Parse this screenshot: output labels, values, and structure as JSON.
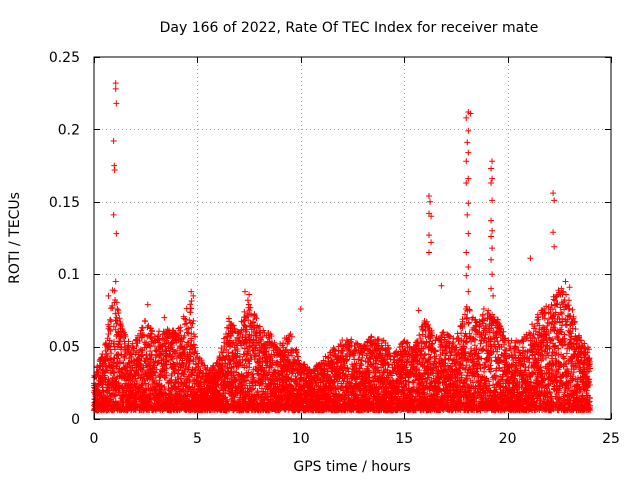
{
  "chart_data": {
    "type": "scatter",
    "title": "Day 166 of 2022, Rate Of TEC Index for receiver mate",
    "xlabel": "GPS time / hours",
    "ylabel": "ROTI / TECUs",
    "xlim": [
      0,
      25
    ],
    "ylim": [
      0,
      0.25
    ],
    "xticks": [
      0,
      5,
      10,
      15,
      20,
      25
    ],
    "yticks": [
      0,
      0.05,
      0.1,
      0.15,
      0.2,
      0.25
    ],
    "xtick_labels": [
      "0",
      "5",
      "10",
      "15",
      "20",
      "25"
    ],
    "ytick_labels": [
      "0",
      "0.05",
      "0.1",
      "0.15",
      "0.2",
      "0.25"
    ],
    "grid": true,
    "marker": "+",
    "color": "#ff0000",
    "series": [
      {
        "name": "ROTI",
        "envelope": [
          [
            0.0,
            0.03
          ],
          [
            0.5,
            0.05
          ],
          [
            0.8,
            0.075
          ],
          [
            1.0,
            0.09
          ],
          [
            1.3,
            0.065
          ],
          [
            1.8,
            0.05
          ],
          [
            2.5,
            0.07
          ],
          [
            3.0,
            0.06
          ],
          [
            3.5,
            0.065
          ],
          [
            4.0,
            0.06
          ],
          [
            4.7,
            0.085
          ],
          [
            5.0,
            0.045
          ],
          [
            5.5,
            0.035
          ],
          [
            6.0,
            0.04
          ],
          [
            6.5,
            0.07
          ],
          [
            7.0,
            0.06
          ],
          [
            7.4,
            0.085
          ],
          [
            8.0,
            0.065
          ],
          [
            8.5,
            0.06
          ],
          [
            9.0,
            0.055
          ],
          [
            9.5,
            0.06
          ],
          [
            10.0,
            0.04
          ],
          [
            10.5,
            0.035
          ],
          [
            11.0,
            0.04
          ],
          [
            11.5,
            0.05
          ],
          [
            12.0,
            0.055
          ],
          [
            12.5,
            0.055
          ],
          [
            13.0,
            0.05
          ],
          [
            13.5,
            0.06
          ],
          [
            14.0,
            0.055
          ],
          [
            14.5,
            0.045
          ],
          [
            15.0,
            0.055
          ],
          [
            15.5,
            0.05
          ],
          [
            16.0,
            0.07
          ],
          [
            16.5,
            0.06
          ],
          [
            17.0,
            0.06
          ],
          [
            17.5,
            0.055
          ],
          [
            18.0,
            0.08
          ],
          [
            18.5,
            0.07
          ],
          [
            19.0,
            0.08
          ],
          [
            19.5,
            0.07
          ],
          [
            20.0,
            0.055
          ],
          [
            20.5,
            0.055
          ],
          [
            21.0,
            0.06
          ],
          [
            21.5,
            0.075
          ],
          [
            22.0,
            0.08
          ],
          [
            22.5,
            0.09
          ],
          [
            23.0,
            0.085
          ],
          [
            23.5,
            0.055
          ],
          [
            24.0,
            0.05
          ]
        ],
        "spikes": [
          [
            1.05,
            0.232
          ],
          [
            1.05,
            0.228
          ],
          [
            1.08,
            0.218
          ],
          [
            0.95,
            0.192
          ],
          [
            0.98,
            0.175
          ],
          [
            1.0,
            0.172
          ],
          [
            0.95,
            0.141
          ],
          [
            1.08,
            0.128
          ],
          [
            1.05,
            0.095
          ],
          [
            0.9,
            0.089
          ],
          [
            0.7,
            0.085
          ],
          [
            2.6,
            0.079
          ],
          [
            3.4,
            0.07
          ],
          [
            4.7,
            0.088
          ],
          [
            4.8,
            0.085
          ],
          [
            7.3,
            0.088
          ],
          [
            7.5,
            0.086
          ],
          [
            10.0,
            0.076
          ],
          [
            16.2,
            0.154
          ],
          [
            16.25,
            0.15
          ],
          [
            16.2,
            0.142
          ],
          [
            16.3,
            0.14
          ],
          [
            16.2,
            0.127
          ],
          [
            16.3,
            0.122
          ],
          [
            16.2,
            0.115
          ],
          [
            16.8,
            0.092
          ],
          [
            15.7,
            0.075
          ],
          [
            18.1,
            0.212
          ],
          [
            18.2,
            0.211
          ],
          [
            18.0,
            0.208
          ],
          [
            18.1,
            0.199
          ],
          [
            18.05,
            0.191
          ],
          [
            18.1,
            0.184
          ],
          [
            18.0,
            0.178
          ],
          [
            18.1,
            0.166
          ],
          [
            18.0,
            0.163
          ],
          [
            18.1,
            0.149
          ],
          [
            18.05,
            0.141
          ],
          [
            18.1,
            0.128
          ],
          [
            18.0,
            0.115
          ],
          [
            18.1,
            0.105
          ],
          [
            18.0,
            0.099
          ],
          [
            18.1,
            0.088
          ],
          [
            19.25,
            0.178
          ],
          [
            19.2,
            0.173
          ],
          [
            19.25,
            0.166
          ],
          [
            19.2,
            0.163
          ],
          [
            19.25,
            0.151
          ],
          [
            19.2,
            0.137
          ],
          [
            19.25,
            0.13
          ],
          [
            19.2,
            0.126
          ],
          [
            19.25,
            0.118
          ],
          [
            19.2,
            0.11
          ],
          [
            19.25,
            0.1
          ],
          [
            19.2,
            0.09
          ],
          [
            21.1,
            0.111
          ],
          [
            22.2,
            0.156
          ],
          [
            22.25,
            0.151
          ],
          [
            22.2,
            0.129
          ],
          [
            22.25,
            0.119
          ],
          [
            22.8,
            0.095
          ],
          [
            22.6,
            0.09
          ],
          [
            19.3,
            0.085
          ],
          [
            23.0,
            0.091
          ]
        ]
      }
    ]
  }
}
